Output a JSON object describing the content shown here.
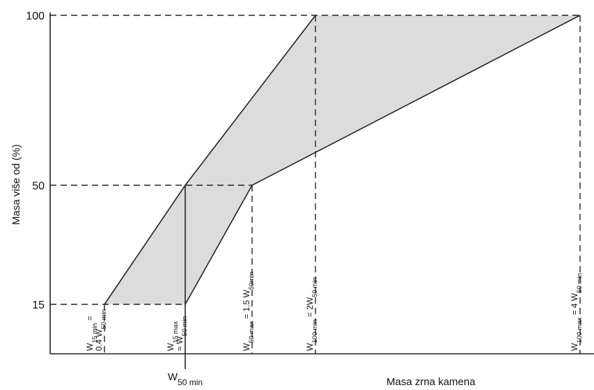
{
  "y_axis": {
    "label": "Masa više od  (%)",
    "ticks": [
      "100",
      "50",
      "15"
    ]
  },
  "x_axis": {
    "label": "Masa zrna kamena"
  },
  "w50_min_label": [
    {
      "text": "W"
    },
    {
      "text": "50 min",
      "sub": true
    }
  ],
  "x_labels": [
    [
      [
        {
          "text": "W"
        },
        {
          "text": "15 min",
          "sub": true
        },
        {
          "text": " ="
        }
      ],
      [
        {
          "text": "0.4 W"
        },
        {
          "text": "50 min",
          "sub": true
        }
      ]
    ],
    [
      [
        {
          "text": "W"
        },
        {
          "text": "15 max",
          "sub": true
        }
      ],
      [
        {
          "text": "≈ W"
        },
        {
          "text": "50 min",
          "sub": true
        }
      ]
    ],
    [
      [
        {
          "text": "W"
        },
        {
          "text": "50 max",
          "sub": true
        },
        {
          "text": " = 1.5 W"
        },
        {
          "text": "50min",
          "sub": true
        }
      ]
    ],
    [
      [
        {
          "text": "W"
        },
        {
          "text": "100 min",
          "sub": true
        },
        {
          "text": " = 2W"
        },
        {
          "text": "50 min",
          "sub": true
        }
      ]
    ],
    [
      [
        {
          "text": "W"
        },
        {
          "text": "100 max",
          "sub": true
        },
        {
          "text": " = 4 W"
        },
        {
          "text": "50 min",
          "sub": true
        }
      ]
    ]
  ]
}
